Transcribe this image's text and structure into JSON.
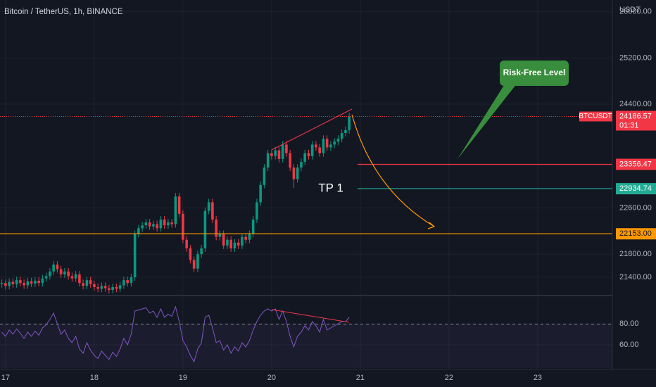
{
  "chart_data": {
    "type": "candlestick",
    "title": "Bitcoin / TetherUS, 1h, BINANCE",
    "currency": "USDT",
    "symbol": "BTCUSDT",
    "countdown": "01:31",
    "annotations": {
      "callout": "Risk-Free Level",
      "target": "TP 1"
    },
    "up_color": "#089981",
    "down_color": "#f23645",
    "xlim": [
      -1.5,
      164.2
    ],
    "xticks": [
      {
        "value": 0,
        "label": "17"
      },
      {
        "value": 24,
        "label": "18"
      },
      {
        "value": 48,
        "label": "19"
      },
      {
        "value": 72,
        "label": "20"
      },
      {
        "value": 96,
        "label": "21"
      },
      {
        "value": 120,
        "label": "22"
      },
      {
        "value": 144,
        "label": "23"
      }
    ],
    "ylim": [
      21083,
      26205
    ],
    "yticks": [
      {
        "value": 26000,
        "label": "26000.00"
      },
      {
        "value": 25200,
        "label": "25200.00"
      },
      {
        "value": 24400,
        "label": "24400.00"
      },
      {
        "value": 22600,
        "label": "22600.00"
      },
      {
        "value": 21800,
        "label": "21800.00"
      },
      {
        "value": 21400,
        "label": "21400.00"
      }
    ],
    "grid": true,
    "x": [
      -1,
      0,
      1,
      2,
      3,
      4,
      5,
      6,
      7,
      8,
      9,
      10,
      11,
      12,
      13,
      14,
      15,
      16,
      17,
      18,
      19,
      20,
      21,
      22,
      23,
      24,
      25,
      26,
      27,
      28,
      29,
      30,
      31,
      32,
      33,
      34,
      35,
      36,
      37,
      38,
      39,
      40,
      41,
      42,
      43,
      44,
      45,
      46,
      47,
      48,
      49,
      50,
      51,
      52,
      53,
      54,
      55,
      56,
      57,
      58,
      59,
      60,
      61,
      62,
      63,
      64,
      65,
      66,
      67,
      68,
      69,
      70,
      71,
      72,
      73,
      74,
      75,
      76,
      77,
      78,
      79,
      80,
      81,
      82,
      83,
      84,
      85,
      86,
      87,
      88,
      89,
      90,
      91,
      92,
      93
    ],
    "open": [
      21280,
      21300,
      21250,
      21320,
      21280,
      21350,
      21300,
      21260,
      21330,
      21290,
      21340,
      21300,
      21380,
      21420,
      21500,
      21620,
      21540,
      21450,
      21500,
      21420,
      21380,
      21450,
      21300,
      21250,
      21350,
      21280,
      21230,
      21200,
      21250,
      21210,
      21180,
      21230,
      21200,
      21260,
      21350,
      21300,
      21400,
      22150,
      22250,
      22300,
      22350,
      22280,
      22320,
      22250,
      22400,
      22300,
      22350,
      22320,
      22800,
      22500,
      22050,
      21900,
      21700,
      21550,
      21800,
      21900,
      22550,
      22700,
      22400,
      22100,
      22150,
      21950,
      22050,
      21900,
      22000,
      21950,
      22100,
      22050,
      22150,
      22400,
      22700,
      23000,
      23300,
      23550,
      23500,
      23600,
      23450,
      23700,
      23550,
      23300,
      23100,
      23300,
      23400,
      23550,
      23500,
      23700,
      23650,
      23550,
      23800,
      23650,
      23700,
      23750,
      23800,
      23900,
      23950
    ],
    "high": [
      21360,
      21360,
      21380,
      21380,
      21410,
      21410,
      21360,
      21390,
      21390,
      21400,
      21400,
      21440,
      21480,
      21560,
      21680,
      21680,
      21600,
      21560,
      21560,
      21480,
      21510,
      21510,
      21360,
      21410,
      21410,
      21340,
      21290,
      21310,
      21310,
      21270,
      21290,
      21290,
      21320,
      21410,
      21410,
      21460,
      22210,
      22310,
      22360,
      22410,
      22410,
      22380,
      22380,
      22460,
      22460,
      22410,
      22410,
      22860,
      22860,
      22560,
      22110,
      21960,
      21760,
      21860,
      21960,
      22610,
      22760,
      22760,
      22460,
      22210,
      22210,
      22110,
      22110,
      22060,
      22060,
      22160,
      22160,
      22210,
      22460,
      22760,
      23060,
      23360,
      23610,
      23610,
      23660,
      23660,
      23760,
      23760,
      23610,
      23360,
      23360,
      23460,
      23610,
      23610,
      23760,
      23760,
      23710,
      23860,
      23860,
      23760,
      23810,
      23860,
      23960,
      24010,
      24250
    ],
    "low": [
      21220,
      21190,
      21190,
      21220,
      21220,
      21240,
      21200,
      21200,
      21230,
      21230,
      21240,
      21240,
      21320,
      21360,
      21440,
      21480,
      21390,
      21390,
      21360,
      21320,
      21320,
      21240,
      21190,
      21190,
      21220,
      21170,
      21140,
      21140,
      21150,
      21120,
      21120,
      21140,
      21140,
      21200,
      21240,
      21240,
      21340,
      22090,
      22190,
      22240,
      22220,
      22220,
      22190,
      22190,
      22240,
      22240,
      22260,
      22260,
      22440,
      21990,
      21840,
      21640,
      21490,
      21490,
      21740,
      21840,
      22490,
      22340,
      22040,
      22040,
      21890,
      21890,
      21840,
      21840,
      21890,
      21890,
      21990,
      21990,
      22090,
      22340,
      22640,
      22940,
      23240,
      23440,
      23440,
      23390,
      23390,
      23490,
      23240,
      22950,
      23040,
      23240,
      23340,
      23440,
      23440,
      23590,
      23490,
      23490,
      23590,
      23590,
      23640,
      23690,
      23740,
      23840,
      23890
    ],
    "close": [
      21300,
      21250,
      21320,
      21280,
      21350,
      21300,
      21260,
      21330,
      21290,
      21340,
      21300,
      21380,
      21420,
      21500,
      21620,
      21540,
      21450,
      21500,
      21420,
      21380,
      21450,
      21300,
      21250,
      21350,
      21280,
      21230,
      21200,
      21250,
      21210,
      21180,
      21230,
      21200,
      21260,
      21350,
      21300,
      21400,
      22150,
      22250,
      22300,
      22350,
      22280,
      22320,
      22250,
      22400,
      22300,
      22350,
      22320,
      22800,
      22500,
      22050,
      21900,
      21700,
      21550,
      21800,
      21900,
      22550,
      22700,
      22400,
      22100,
      22150,
      21950,
      22050,
      21900,
      22000,
      21950,
      22100,
      22050,
      22150,
      22400,
      22700,
      23000,
      23300,
      23550,
      23500,
      23600,
      23450,
      23700,
      23550,
      23300,
      23100,
      23300,
      23400,
      23550,
      23500,
      23700,
      23650,
      23550,
      23800,
      23650,
      23700,
      23750,
      23800,
      23900,
      23950,
      24186.57
    ],
    "levels": [
      {
        "value": 23356.47,
        "color": "#f23645"
      },
      {
        "value": 22934.74,
        "color": "#22ab94"
      },
      {
        "value": 22153,
        "label": "22153.00",
        "color": "#ff9800"
      }
    ],
    "rsi_color": "#7e57c2",
    "rsi_ylim": [
      40,
      106.67
    ],
    "rsi_yticks": [
      {
        "value": 80,
        "label": "80.00"
      },
      {
        "value": 60,
        "label": "60.00"
      }
    ],
    "rsi": [
      72,
      68,
      74,
      70,
      75,
      71,
      66,
      72,
      68,
      73,
      69,
      76,
      79,
      84,
      90,
      80,
      70,
      74,
      66,
      62,
      68,
      56,
      52,
      62,
      55,
      50,
      47,
      54,
      50,
      46,
      53,
      49,
      56,
      66,
      60,
      70,
      92,
      93,
      94,
      95,
      90,
      92,
      86,
      94,
      86,
      89,
      87,
      96,
      82,
      64,
      58,
      50,
      44,
      56,
      62,
      86,
      88,
      76,
      62,
      64,
      55,
      60,
      52,
      58,
      54,
      62,
      58,
      64,
      74,
      82,
      88,
      92,
      94,
      92,
      94,
      84,
      92,
      82,
      68,
      58,
      68,
      72,
      78,
      74,
      82,
      78,
      72,
      84,
      74,
      76,
      78,
      80,
      82,
      82,
      86
    ]
  }
}
